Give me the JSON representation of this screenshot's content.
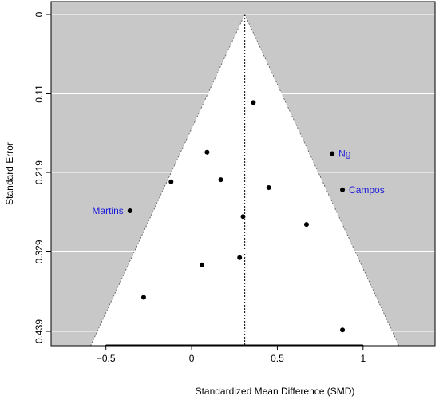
{
  "chart_data": {
    "type": "scatter",
    "subtype": "funnel plot",
    "xlabel": "Standardized Mean Difference (SMD)",
    "ylabel": "Standard Error",
    "xlim": [
      -0.82,
      1.42
    ],
    "ylim": [
      0.439,
      0
    ],
    "y_reversed": true,
    "x_ticks": [
      -0.5,
      0,
      0.5,
      1
    ],
    "x_tick_labels": [
      "−0.5",
      "0",
      "0.5",
      "1"
    ],
    "y_ticks": [
      0,
      0.11,
      0.219,
      0.329,
      0.439
    ],
    "y_tick_labels": [
      "0",
      "0.11",
      "0.219",
      "0.329",
      "0.439"
    ],
    "pooled_estimate": 0.31,
    "funnel_multiplier": 1.96,
    "grid": false,
    "colors": {
      "background": "#c8c8c8",
      "funnel": "#ffffff",
      "points": "#000000",
      "labels": "#1a1adb"
    },
    "points": [
      {
        "x": 0.36,
        "y": 0.122,
        "label": ""
      },
      {
        "x": 0.09,
        "y": 0.191,
        "label": ""
      },
      {
        "x": 0.82,
        "y": 0.193,
        "label": "Ng"
      },
      {
        "x": 0.17,
        "y": 0.229,
        "label": ""
      },
      {
        "x": -0.12,
        "y": 0.232,
        "label": ""
      },
      {
        "x": 0.45,
        "y": 0.24,
        "label": ""
      },
      {
        "x": 0.88,
        "y": 0.243,
        "label": "Campos"
      },
      {
        "x": -0.36,
        "y": 0.272,
        "label": "Martins"
      },
      {
        "x": 0.3,
        "y": 0.28,
        "label": ""
      },
      {
        "x": 0.67,
        "y": 0.291,
        "label": ""
      },
      {
        "x": 0.28,
        "y": 0.337,
        "label": ""
      },
      {
        "x": 0.06,
        "y": 0.347,
        "label": ""
      },
      {
        "x": -0.28,
        "y": 0.392,
        "label": ""
      },
      {
        "x": 0.88,
        "y": 0.437,
        "label": ""
      }
    ]
  }
}
